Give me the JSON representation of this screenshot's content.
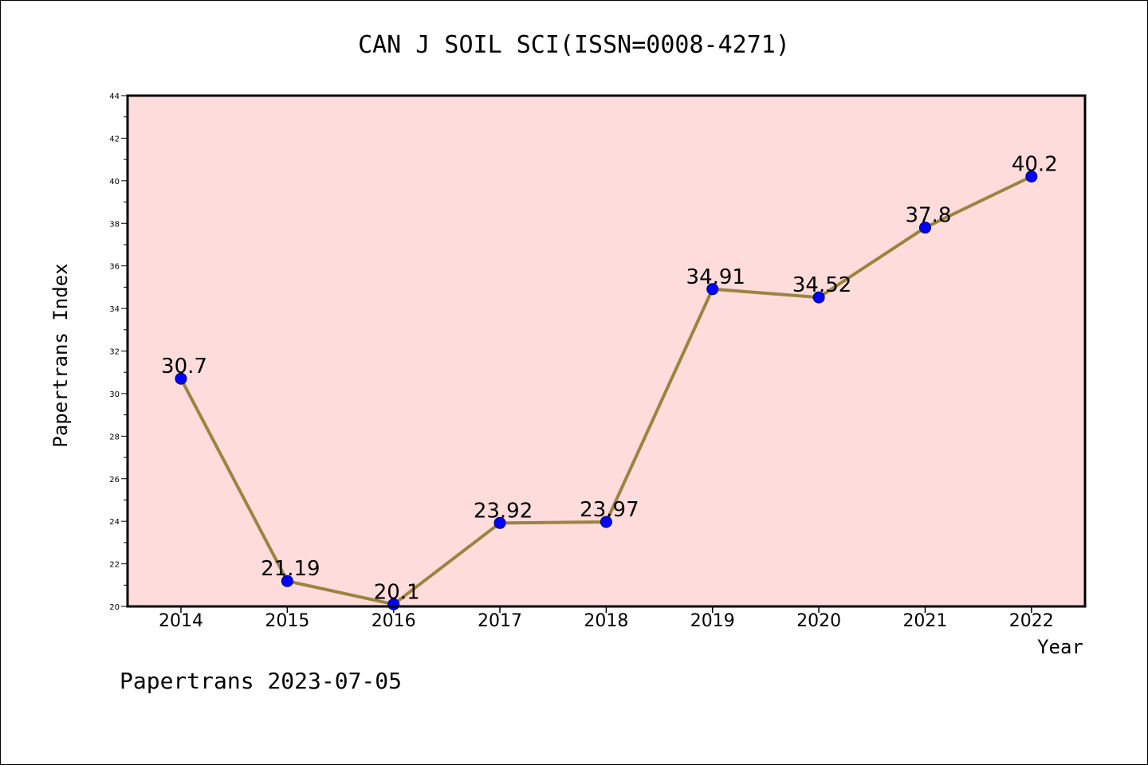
{
  "chart_data": {
    "type": "line",
    "title": "CAN J SOIL SCI(ISSN=0008-4271)",
    "xlabel": "Year",
    "ylabel": "Papertrans Index",
    "categories": [
      "2014",
      "2015",
      "2016",
      "2017",
      "2018",
      "2019",
      "2020",
      "2021",
      "2022"
    ],
    "values": [
      30.7,
      21.19,
      20.1,
      23.92,
      23.97,
      34.91,
      34.52,
      37.8,
      40.2
    ],
    "data_labels": [
      "30.7",
      "21.19",
      "20.1",
      "23.92",
      "23.97",
      "34.91",
      "34.52",
      "37.8",
      "40.2"
    ],
    "ylim": [
      20,
      44
    ],
    "yticks": [
      "20",
      "22",
      "24",
      "26",
      "28",
      "30",
      "32",
      "34",
      "36",
      "38",
      "40",
      "42",
      "44"
    ],
    "grid": false,
    "legend": "none",
    "colors": {
      "plot_background": "#ffdcdc",
      "line": "#9b843f",
      "marker": "#0000ff"
    }
  },
  "footer": "Papertrans 2023-07-05"
}
